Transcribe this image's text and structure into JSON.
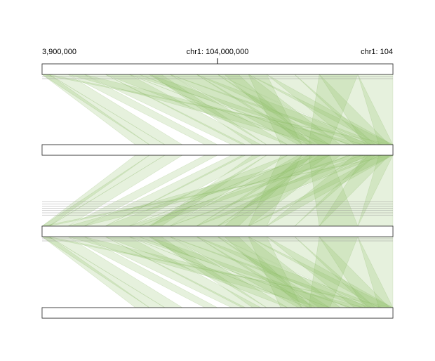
{
  "ruler": {
    "labels": [
      {
        "text": "3,900,000",
        "pos": 0.0,
        "anchor": "start"
      },
      {
        "text": "chr1: 104,000,000",
        "pos": 0.5,
        "anchor": "middle"
      },
      {
        "text": "chr1: 104",
        "pos": 1.0,
        "anchor": "end"
      }
    ]
  },
  "colors": {
    "ribbon": "#8fbf66",
    "segment_light": "#dcebd0",
    "segment_dark": "#b9d79e",
    "track_border": "#333333"
  },
  "tracks": [
    {
      "id": "track-1"
    },
    {
      "id": "track-2"
    },
    {
      "id": "track-3"
    },
    {
      "id": "track-4"
    }
  ],
  "bands_between_2_and_3": 7
}
